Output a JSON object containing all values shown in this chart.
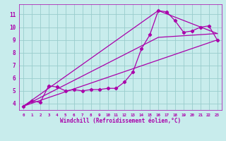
{
  "bg_color": "#c8ecec",
  "line_color": "#aa00aa",
  "grid_color": "#99cccc",
  "xlabel": "Windchill (Refroidissement éolien,°C)",
  "ylabel_ticks": [
    4,
    5,
    6,
    7,
    8,
    9,
    10,
    11
  ],
  "xlim": [
    -0.5,
    23.5
  ],
  "ylim": [
    3.5,
    11.8
  ],
  "x_ticks": [
    0,
    1,
    2,
    3,
    4,
    5,
    6,
    7,
    8,
    9,
    10,
    11,
    12,
    13,
    14,
    15,
    16,
    17,
    18,
    19,
    20,
    21,
    22,
    23
  ],
  "main_line_x": [
    0,
    1,
    2,
    3,
    4,
    5,
    6,
    7,
    8,
    9,
    10,
    11,
    12,
    13,
    14,
    15,
    16,
    17,
    18,
    19,
    20,
    21,
    22,
    23
  ],
  "main_line_y": [
    3.8,
    4.2,
    4.1,
    5.4,
    5.3,
    5.0,
    5.1,
    5.0,
    5.1,
    5.1,
    5.2,
    5.2,
    5.7,
    6.5,
    8.3,
    9.4,
    11.3,
    11.2,
    10.5,
    9.6,
    9.7,
    10.0,
    10.1,
    9.0
  ],
  "line1_x": [
    0,
    23
  ],
  "line1_y": [
    3.8,
    9.0
  ],
  "line2_x": [
    0,
    16,
    23
  ],
  "line2_y": [
    3.8,
    9.2,
    9.5
  ],
  "line3_x": [
    0,
    16,
    23
  ],
  "line3_y": [
    3.8,
    11.3,
    9.5
  ]
}
